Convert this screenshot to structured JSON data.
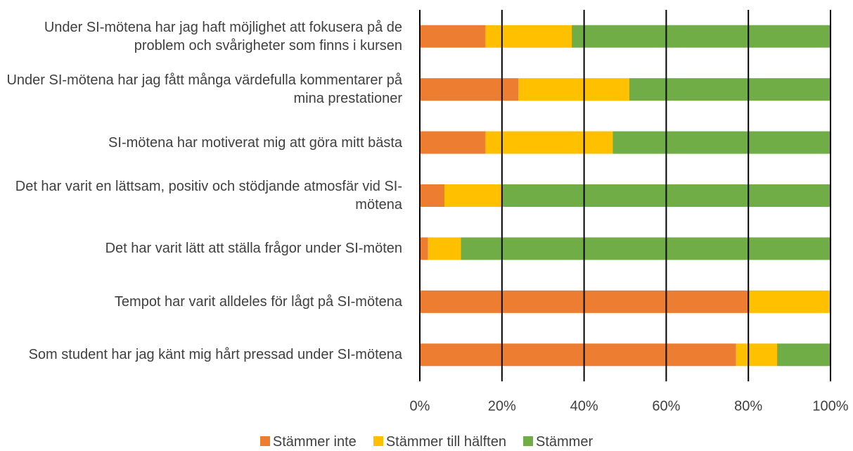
{
  "chart_data": {
    "type": "stacked_barh",
    "categories": [
      "Under SI-mötena har jag haft möjlighet att fokusera på de problem och svårigheter som finns i kursen",
      "Under SI-mötena har jag fått många värdefulla kommentarer på mina prestationer",
      "SI-mötena har motiverat mig att göra mitt bästa",
      "Det har varit en lättsam, positiv och stödjande atmosfär vid SI-mötena",
      "Det har varit lätt att ställa frågor under SI-möten",
      "Tempot har varit alldeles för lågt på SI-mötena",
      "Som student har jag känt mig hårt pressad under SI-mötena"
    ],
    "series": [
      {
        "name": "Stämmer inte",
        "color": "#ED7D31",
        "values": [
          16,
          24,
          16,
          6,
          2,
          80,
          77
        ]
      },
      {
        "name": "Stämmer till hälften",
        "color": "#FFC000",
        "values": [
          21,
          27,
          31,
          14,
          8,
          20,
          10
        ]
      },
      {
        "name": "Stämmer",
        "color": "#70AD47",
        "values": [
          63,
          49,
          53,
          80,
          90,
          0,
          13
        ]
      }
    ],
    "xlim": [
      0,
      100
    ],
    "xticks": [
      {
        "value": 0,
        "label": "0%"
      },
      {
        "value": 20,
        "label": "20%"
      },
      {
        "value": 40,
        "label": "40%"
      },
      {
        "value": 60,
        "label": "60%"
      },
      {
        "value": 80,
        "label": "80%"
      },
      {
        "value": 100,
        "label": "100%"
      }
    ],
    "grid": true,
    "legend": "bottom"
  }
}
